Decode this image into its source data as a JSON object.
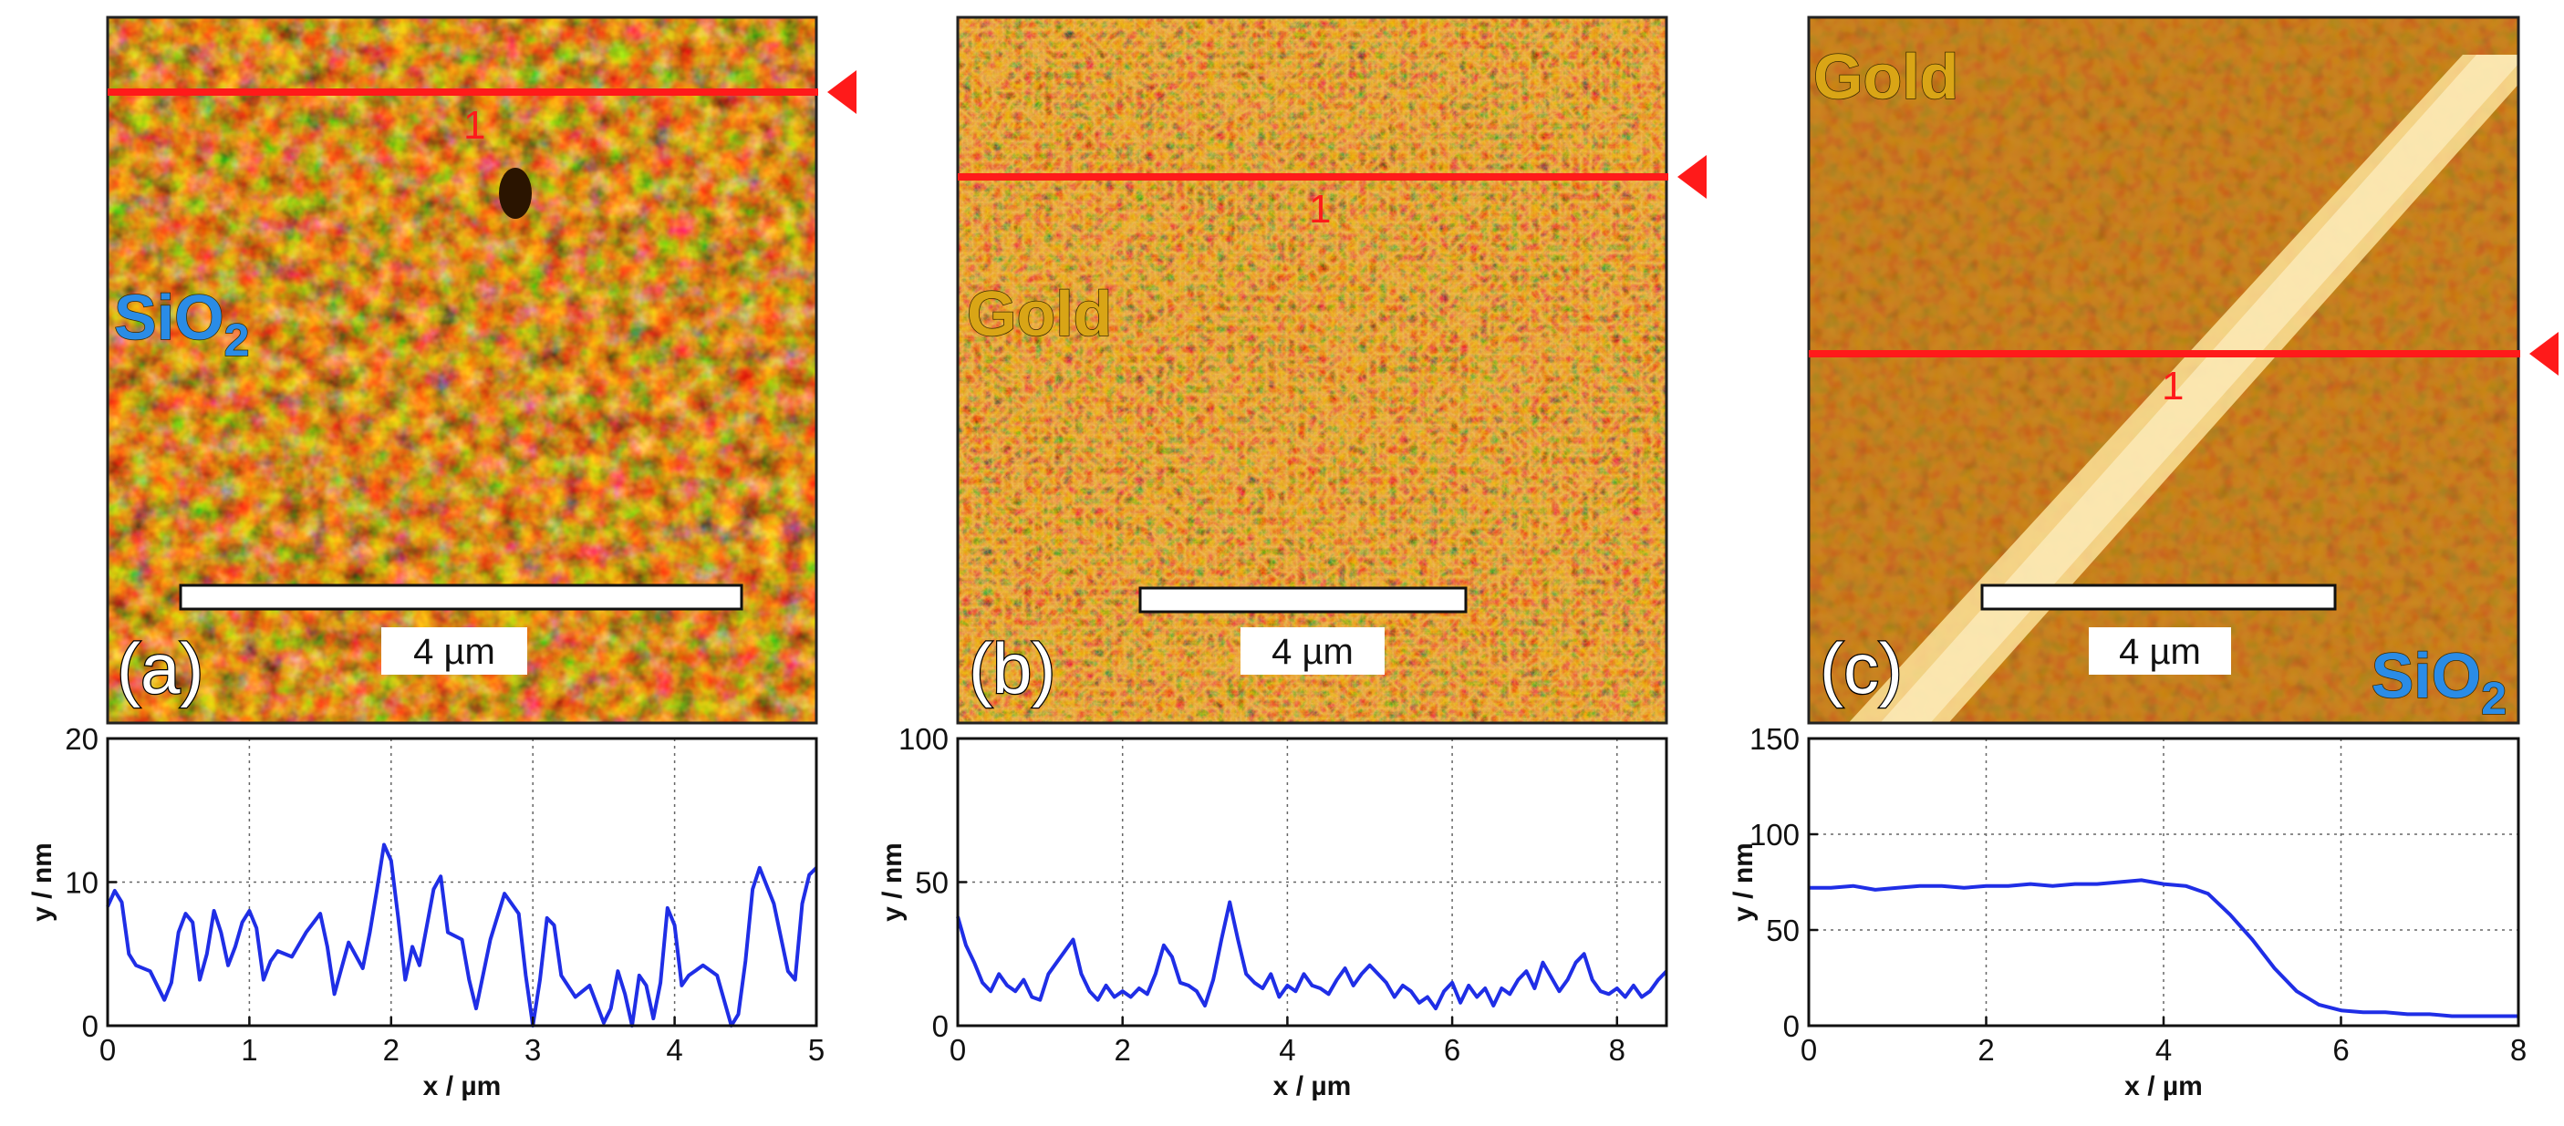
{
  "colors": {
    "accent_red": "#ff1a1a",
    "profile_blue": "#1f2ee6",
    "sio2_blue": "#2a8ce6",
    "gold_label": "#d9a516",
    "afm_base": "#c88a1e"
  },
  "panels": [
    {
      "panel_label": "(a)",
      "scale_bar": "4 µm",
      "line_label": "1",
      "materials": [
        {
          "text": "SiO",
          "sub": "2",
          "color": "#2a8ce6"
        }
      ]
    },
    {
      "panel_label": "(b)",
      "scale_bar": "4 µm",
      "line_label": "1",
      "materials": [
        {
          "text": "Gold",
          "sub": "",
          "color": "#d9a516"
        }
      ]
    },
    {
      "panel_label": "(c)",
      "scale_bar": "4 µm",
      "line_label": "1",
      "materials": [
        {
          "text": "Gold",
          "sub": "",
          "color": "#d9a516"
        },
        {
          "text": "SiO",
          "sub": "2",
          "color": "#2a8ce6"
        }
      ]
    }
  ],
  "chart_data": [
    {
      "type": "line",
      "xlabel": "x / µm",
      "ylabel": "y / nm",
      "xlim": [
        0,
        5
      ],
      "ylim": [
        0,
        20
      ],
      "xticks": [
        0,
        1,
        2,
        3,
        4,
        5
      ],
      "yticks": [
        0,
        10,
        20
      ],
      "grid": true,
      "series": [
        {
          "x": [
            0,
            0.05,
            0.1,
            0.15,
            0.2,
            0.3,
            0.4,
            0.45,
            0.5,
            0.55,
            0.6,
            0.65,
            0.7,
            0.75,
            0.8,
            0.85,
            0.9,
            0.95,
            1.0,
            1.05,
            1.1,
            1.15,
            1.2,
            1.3,
            1.4,
            1.5,
            1.55,
            1.6,
            1.7,
            1.8,
            1.85,
            1.9,
            1.95,
            2.0,
            2.05,
            2.1,
            2.15,
            2.2,
            2.3,
            2.35,
            2.4,
            2.5,
            2.55,
            2.6,
            2.7,
            2.8,
            2.9,
            2.95,
            3.0,
            3.05,
            3.1,
            3.15,
            3.2,
            3.3,
            3.4,
            3.5,
            3.55,
            3.6,
            3.65,
            3.7,
            3.75,
            3.8,
            3.85,
            3.9,
            3.95,
            4.0,
            4.05,
            4.1,
            4.2,
            4.3,
            4.4,
            4.45,
            4.5,
            4.55,
            4.6,
            4.7,
            4.8,
            4.85,
            4.9,
            4.95,
            5.0
          ],
          "values": [
            8.3,
            9.4,
            8.6,
            5.0,
            4.2,
            3.8,
            1.8,
            3.0,
            6.5,
            7.8,
            7.2,
            3.2,
            5.0,
            8.0,
            6.5,
            4.2,
            5.5,
            7.2,
            8.0,
            6.8,
            3.2,
            4.5,
            5.2,
            4.8,
            6.5,
            7.8,
            5.5,
            2.2,
            5.8,
            4.0,
            6.5,
            9.5,
            12.6,
            11.5,
            7.5,
            3.2,
            5.5,
            4.2,
            9.5,
            10.4,
            6.5,
            6.0,
            3.2,
            1.2,
            6.0,
            9.2,
            7.8,
            3.5,
            0.0,
            3.2,
            7.5,
            7.0,
            3.5,
            2.0,
            2.8,
            0.2,
            1.2,
            3.8,
            2.2,
            0.0,
            3.5,
            2.8,
            0.5,
            3.0,
            8.2,
            7.0,
            2.8,
            3.5,
            4.2,
            3.5,
            0.0,
            0.8,
            4.5,
            9.5,
            11.0,
            8.5,
            3.8,
            3.2,
            8.5,
            10.5,
            11.0
          ]
        }
      ]
    },
    {
      "type": "line",
      "xlabel": "x / µm",
      "ylabel": "y / nm",
      "xlim": [
        0,
        8.6
      ],
      "ylim": [
        0,
        100
      ],
      "xticks": [
        0,
        2,
        4,
        6,
        8
      ],
      "yticks": [
        0,
        50,
        100
      ],
      "grid": true,
      "series": [
        {
          "x": [
            0,
            0.1,
            0.2,
            0.3,
            0.4,
            0.5,
            0.6,
            0.7,
            0.8,
            0.9,
            1.0,
            1.1,
            1.2,
            1.3,
            1.4,
            1.5,
            1.6,
            1.7,
            1.8,
            1.9,
            2.0,
            2.1,
            2.2,
            2.3,
            2.4,
            2.5,
            2.6,
            2.7,
            2.8,
            2.9,
            3.0,
            3.1,
            3.2,
            3.3,
            3.4,
            3.5,
            3.6,
            3.7,
            3.8,
            3.9,
            4.0,
            4.1,
            4.2,
            4.3,
            4.4,
            4.5,
            4.6,
            4.7,
            4.8,
            4.9,
            5.0,
            5.1,
            5.2,
            5.3,
            5.4,
            5.5,
            5.6,
            5.7,
            5.8,
            5.9,
            6.0,
            6.1,
            6.2,
            6.3,
            6.4,
            6.5,
            6.6,
            6.7,
            6.8,
            6.9,
            7.0,
            7.1,
            7.2,
            7.3,
            7.4,
            7.5,
            7.6,
            7.7,
            7.8,
            7.9,
            8.0,
            8.1,
            8.2,
            8.3,
            8.4,
            8.5,
            8.6
          ],
          "values": [
            38,
            28,
            22,
            15,
            12,
            18,
            14,
            12,
            16,
            10,
            9,
            18,
            22,
            26,
            30,
            18,
            12,
            9,
            14,
            10,
            12,
            10,
            13,
            11,
            18,
            28,
            24,
            15,
            14,
            12,
            7,
            16,
            30,
            43,
            30,
            18,
            15,
            13,
            18,
            10,
            14,
            12,
            18,
            14,
            13,
            11,
            16,
            20,
            14,
            18,
            21,
            18,
            15,
            10,
            14,
            12,
            8,
            10,
            6,
            12,
            15,
            8,
            14,
            10,
            13,
            7,
            13,
            11,
            16,
            19,
            13,
            22,
            17,
            12,
            16,
            22,
            25,
            16,
            12,
            11,
            13,
            10,
            14,
            10,
            12,
            16,
            19
          ]
        }
      ]
    },
    {
      "type": "line",
      "xlabel": "x / µm",
      "ylabel": "y / nm",
      "xlim": [
        0,
        8
      ],
      "ylim": [
        0,
        150
      ],
      "xticks": [
        0,
        2,
        4,
        6,
        8
      ],
      "yticks": [
        0,
        50,
        100,
        150
      ],
      "grid": true,
      "series": [
        {
          "x": [
            0,
            0.25,
            0.5,
            0.75,
            1.0,
            1.25,
            1.5,
            1.75,
            2.0,
            2.25,
            2.5,
            2.75,
            3.0,
            3.25,
            3.5,
            3.75,
            4.0,
            4.25,
            4.5,
            4.75,
            5.0,
            5.25,
            5.5,
            5.75,
            6.0,
            6.25,
            6.5,
            6.75,
            7.0,
            7.25,
            7.5,
            7.75,
            8.0
          ],
          "values": [
            72,
            72,
            73,
            71,
            72,
            73,
            73,
            72,
            73,
            73,
            74,
            73,
            74,
            74,
            75,
            76,
            74,
            73,
            69,
            58,
            45,
            30,
            18,
            11,
            8,
            7,
            7,
            6,
            6,
            5,
            5,
            5,
            5
          ]
        }
      ]
    }
  ]
}
